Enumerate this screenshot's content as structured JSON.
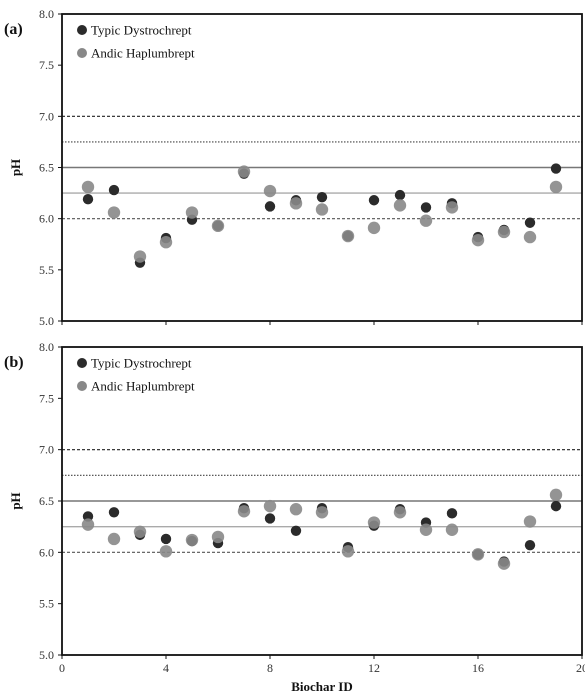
{
  "chart_data": [
    {
      "type": "scatter",
      "panel_label": "(a)",
      "ylabel": "pH",
      "xlabel": "",
      "xlim": [
        0,
        20
      ],
      "ylim": [
        5.0,
        8.0
      ],
      "yticks": [
        "5.0",
        "5.5",
        "6.0",
        "6.5",
        "7.0",
        "7.5",
        "8.0"
      ],
      "xticks": [],
      "legend_position": "top-left",
      "grid": false,
      "reference_lines": [
        {
          "y": 7.0,
          "style": "dashed",
          "color": "#222222"
        },
        {
          "y": 6.75,
          "style": "dotted",
          "color": "#444444"
        },
        {
          "y": 6.5,
          "style": "solid",
          "color": "#777777"
        },
        {
          "y": 6.25,
          "style": "solid",
          "color": "#aaaaaa"
        },
        {
          "y": 6.0,
          "style": "dashed",
          "color": "#555555"
        }
      ],
      "series": [
        {
          "name": "Typic Dystrochrept",
          "color": "#2b2b2b",
          "x": [
            1,
            2,
            3,
            4,
            5,
            6,
            7,
            8,
            9,
            10,
            11,
            12,
            13,
            14,
            15,
            16,
            17,
            18,
            19
          ],
          "y": [
            6.19,
            6.28,
            5.57,
            5.81,
            5.99,
            5.93,
            6.44,
            6.12,
            6.18,
            6.21,
            5.83,
            6.18,
            6.23,
            6.11,
            6.15,
            5.82,
            5.89,
            5.96,
            6.49
          ]
        },
        {
          "name": "Andic Haplumbrept",
          "color": "#888888",
          "x": [
            1,
            2,
            3,
            4,
            5,
            6,
            7,
            8,
            9,
            10,
            11,
            12,
            13,
            14,
            15,
            16,
            17,
            18,
            19
          ],
          "y": [
            6.31,
            6.06,
            5.63,
            5.77,
            6.06,
            5.93,
            6.46,
            6.27,
            6.15,
            6.09,
            5.83,
            5.91,
            6.13,
            5.98,
            6.11,
            5.79,
            5.87,
            5.82,
            6.31
          ]
        }
      ]
    },
    {
      "type": "scatter",
      "panel_label": "(b)",
      "ylabel": "pH",
      "xlabel": "Biochar ID",
      "xlim": [
        0,
        20
      ],
      "ylim": [
        5.0,
        8.0
      ],
      "yticks": [
        "5.0",
        "5.5",
        "6.0",
        "6.5",
        "7.0",
        "7.5",
        "8.0"
      ],
      "xticks": [
        "0",
        "4",
        "8",
        "12",
        "16",
        "20"
      ],
      "legend_position": "top-left",
      "grid": false,
      "reference_lines": [
        {
          "y": 7.0,
          "style": "dashed",
          "color": "#222222"
        },
        {
          "y": 6.75,
          "style": "dotted",
          "color": "#444444"
        },
        {
          "y": 6.5,
          "style": "solid",
          "color": "#777777"
        },
        {
          "y": 6.25,
          "style": "solid",
          "color": "#aaaaaa"
        },
        {
          "y": 6.0,
          "style": "dashed",
          "color": "#555555"
        }
      ],
      "series": [
        {
          "name": "Typic Dystrochrept",
          "color": "#2b2b2b",
          "x": [
            1,
            2,
            3,
            4,
            5,
            6,
            7,
            8,
            9,
            10,
            11,
            12,
            13,
            14,
            15,
            16,
            17,
            18,
            19
          ],
          "y": [
            6.35,
            6.39,
            6.17,
            6.13,
            6.11,
            6.09,
            6.43,
            6.33,
            6.21,
            6.43,
            6.05,
            6.26,
            6.42,
            6.29,
            6.38,
            5.98,
            5.91,
            6.07,
            6.45
          ]
        },
        {
          "name": "Andic Haplumbrept",
          "color": "#888888",
          "x": [
            1,
            2,
            3,
            4,
            5,
            6,
            7,
            8,
            9,
            10,
            11,
            12,
            13,
            14,
            15,
            16,
            17,
            18,
            19
          ],
          "y": [
            6.27,
            6.13,
            6.2,
            6.01,
            6.12,
            6.15,
            6.4,
            6.45,
            6.42,
            6.39,
            6.01,
            6.29,
            6.39,
            6.22,
            6.22,
            5.98,
            5.89,
            6.3,
            6.56
          ]
        }
      ]
    }
  ]
}
